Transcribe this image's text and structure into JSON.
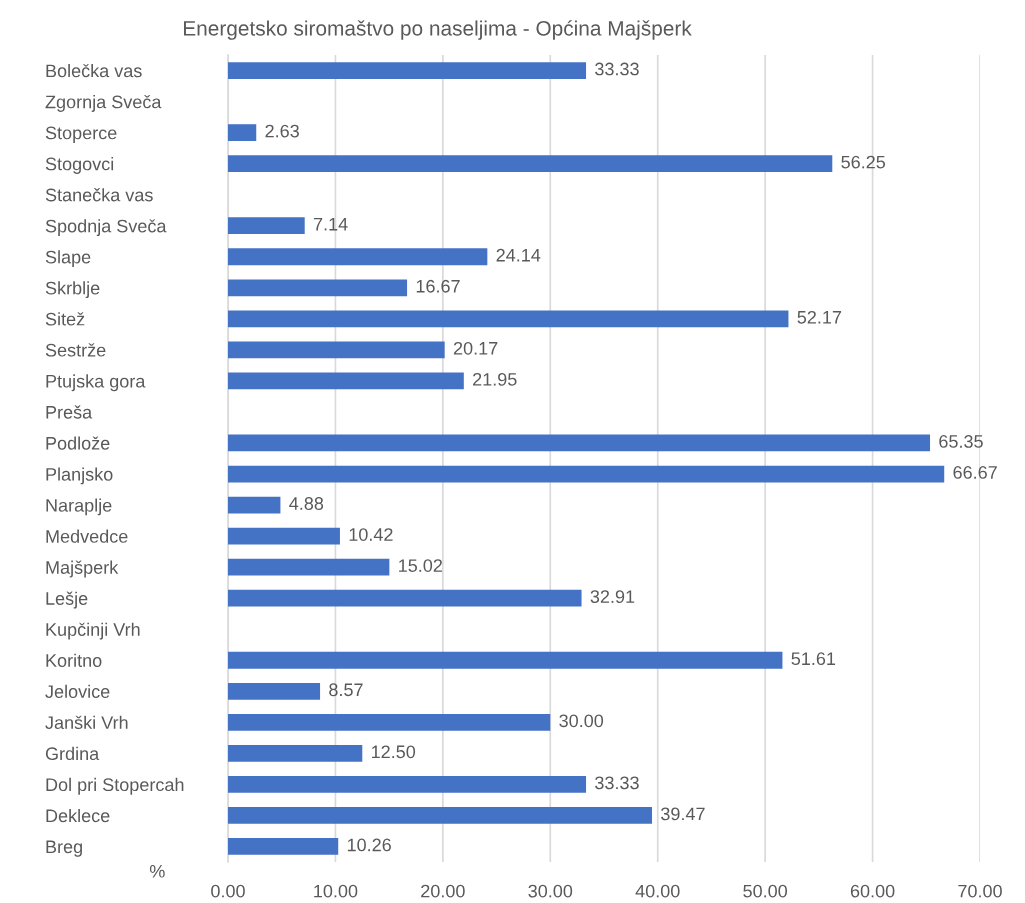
{
  "chart_data": {
    "type": "bar",
    "orientation": "horizontal",
    "title": "Energetsko siromaštvo po naseljima - Općina Majšperk",
    "xlabel": "%",
    "categories": [
      "Bolečka vas",
      "Zgornja Sveča",
      "Stoperce",
      "Stogovci",
      "Stanečka vas",
      "Spodnja Sveča",
      "Slape",
      "Skrblje",
      "Sitež",
      "Sestrže",
      "Ptujska gora",
      "Preša",
      "Podlože",
      "Planjsko",
      "Naraplje",
      "Medvedce",
      "Majšperk",
      "Lešje",
      "Kupčinji Vrh",
      "Koritno",
      "Jelovice",
      "Janški Vrh",
      "Grdina",
      "Dol pri Stopercah",
      "Deklece",
      "Breg"
    ],
    "values": [
      33.33,
      null,
      2.63,
      56.25,
      null,
      7.14,
      24.14,
      16.67,
      52.17,
      20.17,
      21.95,
      null,
      65.35,
      66.67,
      4.88,
      10.42,
      15.02,
      32.91,
      null,
      51.61,
      8.57,
      30.0,
      12.5,
      33.33,
      39.47,
      10.26
    ],
    "value_labels": [
      "33.33",
      null,
      "2.63",
      "56.25",
      null,
      "7.14",
      "24.14",
      "16.67",
      "52.17",
      "20.17",
      "21.95",
      null,
      "65.35",
      "66.67",
      "4.88",
      "10.42",
      "15.02",
      "32.91",
      null,
      "51.61",
      "8.57",
      "30.00",
      "12.50",
      "33.33",
      "39.47",
      "10.26"
    ],
    "color": "#4472c4",
    "xlim": [
      0,
      70
    ],
    "xticks": [
      {
        "value": 0,
        "label": "0.00"
      },
      {
        "value": 10,
        "label": "10.00"
      },
      {
        "value": 20,
        "label": "20.00"
      },
      {
        "value": 30,
        "label": "30.00"
      },
      {
        "value": 40,
        "label": "40.00"
      },
      {
        "value": 50,
        "label": "50.00"
      },
      {
        "value": 60,
        "label": "60.00"
      },
      {
        "value": 70,
        "label": "70.00"
      }
    ],
    "grid": "x",
    "legend": false
  }
}
